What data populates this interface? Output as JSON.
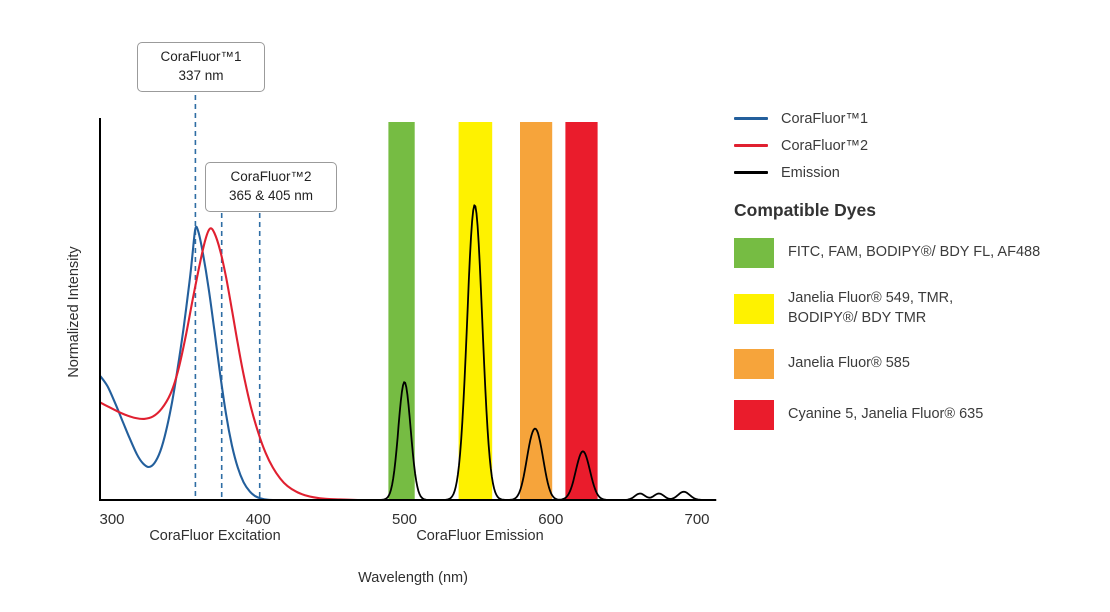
{
  "figure": {
    "y_axis_label": "Normalized Intensity",
    "x_axis_label": "Wavelength (nm)",
    "x_section_labels": {
      "excitation": "CoraFluor Excitation",
      "emission": "CoraFluor Emission"
    }
  },
  "callouts": [
    {
      "line1": "CoraFluor™1",
      "line2": "337 nm",
      "lines_nm": [
        357
      ]
    },
    {
      "line1": "CoraFluor™2",
      "line2": "365 & 405 nm",
      "lines_nm": [
        375,
        401
      ]
    }
  ],
  "legend": {
    "items": [
      {
        "label": "CoraFluor™1",
        "color": "#235f9c"
      },
      {
        "label": "CoraFluor™2",
        "color": "#e02030"
      },
      {
        "label": "Emission",
        "color": "#000000"
      }
    ]
  },
  "dyes": {
    "heading": "Compatible Dyes",
    "items": [
      {
        "color": "#76bc43",
        "label": "FITC, FAM, BODIPY®/ BDY FL, AF488"
      },
      {
        "color": "#fef200",
        "label": "Janelia Fluor® 549, TMR,\nBODIPY®/ BDY TMR"
      },
      {
        "color": "#f6a43b",
        "label": "Janelia Fluor® 585"
      },
      {
        "color": "#ea1c2c",
        "label": "Cyanine 5, Janelia Fluor® 635"
      }
    ]
  },
  "chart_data": {
    "type": "line",
    "title": "CoraFluor excitation and emission spectra with compatible dye emission windows",
    "xlabel": "Wavelength (nm)",
    "ylabel": "Normalized Intensity",
    "xlim": [
      292,
      713
    ],
    "ylim": [
      0,
      1.28
    ],
    "x_ticks": [
      300,
      400,
      500,
      600,
      700
    ],
    "grid": false,
    "marker_color": "#2e6da4",
    "stated_excitation_maxima": {
      "corafluor1_nm": 337,
      "corafluor2_nm": [
        365,
        405
      ]
    },
    "bands": [
      {
        "name": "FITC, FAM, BODIPY/BDY FL, AF488",
        "color": "#76bc43",
        "from_nm": 489,
        "to_nm": 507
      },
      {
        "name": "Janelia Fluor 549, TMR, BODIPY/BDY TMR",
        "color": "#fef200",
        "from_nm": 537,
        "to_nm": 560
      },
      {
        "name": "Janelia Fluor 585",
        "color": "#f6a43b",
        "from_nm": 579,
        "to_nm": 601
      },
      {
        "name": "Cyanine 5, Janelia Fluor 635",
        "color": "#ea1c2c",
        "from_nm": 610,
        "to_nm": 632
      }
    ],
    "series": [
      {
        "name": "CoraFluor™1 excitation",
        "color": "#235f9c",
        "points": [
          [
            292,
            0.42
          ],
          [
            297,
            0.385
          ],
          [
            302,
            0.33
          ],
          [
            307,
            0.27
          ],
          [
            312,
            0.21
          ],
          [
            317,
            0.155
          ],
          [
            321,
            0.125
          ],
          [
            325,
            0.112
          ],
          [
            329,
            0.125
          ],
          [
            333,
            0.165
          ],
          [
            337,
            0.235
          ],
          [
            341,
            0.33
          ],
          [
            345,
            0.45
          ],
          [
            349,
            0.585
          ],
          [
            353,
            0.74
          ],
          [
            355,
            0.83
          ],
          [
            357,
            0.92
          ],
          [
            359,
            0.91
          ],
          [
            362,
            0.84
          ],
          [
            366,
            0.72
          ],
          [
            370,
            0.575
          ],
          [
            374,
            0.425
          ],
          [
            378,
            0.29
          ],
          [
            382,
            0.185
          ],
          [
            386,
            0.11
          ],
          [
            390,
            0.06
          ],
          [
            394,
            0.03
          ],
          [
            398,
            0.013
          ],
          [
            402,
            0.005
          ],
          [
            406,
            0.001
          ],
          [
            410,
            0
          ]
        ]
      },
      {
        "name": "CoraFluor™2 excitation",
        "color": "#e02030",
        "points": [
          [
            292,
            0.33
          ],
          [
            298,
            0.315
          ],
          [
            304,
            0.3
          ],
          [
            310,
            0.287
          ],
          [
            316,
            0.278
          ],
          [
            322,
            0.275
          ],
          [
            328,
            0.283
          ],
          [
            334,
            0.31
          ],
          [
            340,
            0.36
          ],
          [
            345,
            0.435
          ],
          [
            350,
            0.545
          ],
          [
            355,
            0.675
          ],
          [
            360,
            0.8
          ],
          [
            364,
            0.885
          ],
          [
            367,
            0.92
          ],
          [
            370,
            0.905
          ],
          [
            374,
            0.845
          ],
          [
            378,
            0.755
          ],
          [
            382,
            0.645
          ],
          [
            386,
            0.53
          ],
          [
            390,
            0.425
          ],
          [
            395,
            0.315
          ],
          [
            400,
            0.228
          ],
          [
            405,
            0.16
          ],
          [
            410,
            0.11
          ],
          [
            415,
            0.073
          ],
          [
            420,
            0.047
          ],
          [
            426,
            0.028
          ],
          [
            432,
            0.016
          ],
          [
            438,
            0.009
          ],
          [
            446,
            0.004
          ],
          [
            456,
            0.002
          ],
          [
            468,
            0
          ]
        ]
      },
      {
        "name": "Emission",
        "color": "#000000",
        "gaussians": [
          {
            "center": 500,
            "width": 4.2,
            "amplitude": 0.4
          },
          {
            "center": 548,
            "width": 5.2,
            "amplitude": 1.0
          },
          {
            "center": 586.5,
            "width": 4.2,
            "amplitude": 0.15
          },
          {
            "center": 592,
            "width": 4.2,
            "amplitude": 0.15
          },
          {
            "center": 622,
            "width": 4.8,
            "amplitude": 0.165
          },
          {
            "center": 661,
            "width": 3.5,
            "amplitude": 0.022
          },
          {
            "center": 674,
            "width": 3.5,
            "amplitude": 0.022
          },
          {
            "center": 691,
            "width": 4.0,
            "amplitude": 0.028
          }
        ]
      }
    ]
  }
}
